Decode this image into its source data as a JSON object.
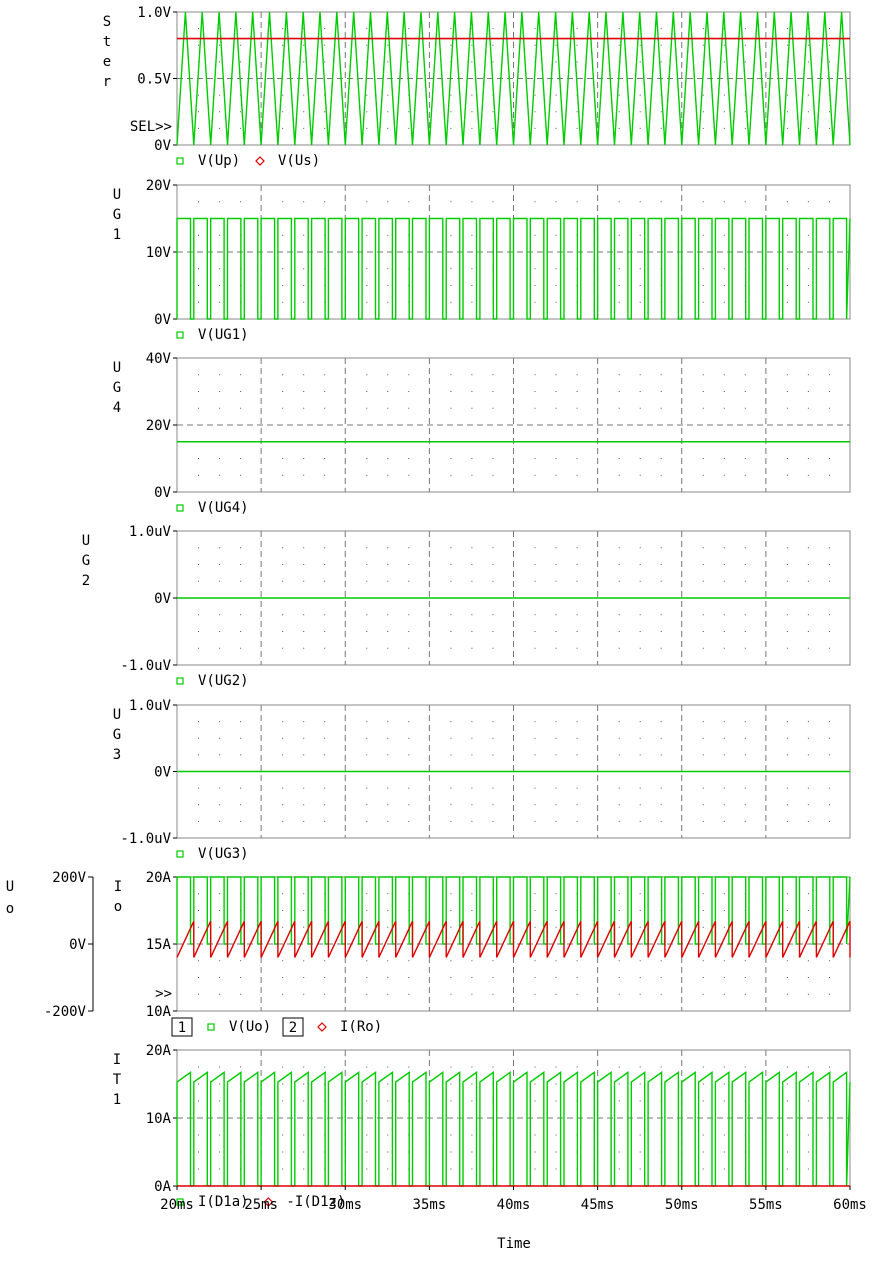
{
  "time_axis": {
    "ticks": [
      "20ms",
      "25ms",
      "30ms",
      "35ms",
      "40ms",
      "45ms",
      "50ms",
      "55ms",
      "60ms"
    ],
    "label": "Time"
  },
  "chart_data": [
    {
      "type": "line",
      "ylabel": [
        "S",
        "t",
        "e",
        "r"
      ],
      "ylim": [
        0,
        1.0
      ],
      "yticks": [
        "0V",
        "0.5V",
        "1.0V"
      ],
      "marker": "SEL>>",
      "xlim_ms": [
        20,
        60
      ],
      "grid": true,
      "legend": [
        {
          "name": "V(Up)",
          "color": "#00cc00",
          "symbol": "square"
        },
        {
          "name": "V(Us)",
          "color": "#dd0000",
          "symbol": "diamond"
        }
      ],
      "series": [
        {
          "name": "V(Up)",
          "waveform": "triangle",
          "min": 0,
          "max": 1.0,
          "period_ms": 1.0,
          "color": "#00cc00"
        },
        {
          "name": "V(Us)",
          "waveform": "constant",
          "value": 0.8,
          "color": "#dd0000"
        }
      ]
    },
    {
      "type": "line",
      "ylabel": [
        "U",
        "G",
        "1"
      ],
      "ylim": [
        0,
        20
      ],
      "yticks": [
        "0V",
        "10V",
        "20V"
      ],
      "xlim_ms": [
        20,
        60
      ],
      "grid": true,
      "legend": [
        {
          "name": "V(UG1)",
          "color": "#00cc00",
          "symbol": "square"
        }
      ],
      "series": [
        {
          "name": "V(UG1)",
          "waveform": "pwm",
          "low": 0,
          "high": 15,
          "period_ms": 1.0,
          "duty": 0.8,
          "color": "#00cc00"
        }
      ]
    },
    {
      "type": "line",
      "ylabel": [
        "U",
        "G",
        "4"
      ],
      "ylim": [
        0,
        40
      ],
      "yticks": [
        "0V",
        "20V",
        "40V"
      ],
      "xlim_ms": [
        20,
        60
      ],
      "grid": true,
      "legend": [
        {
          "name": "V(UG4)",
          "color": "#00cc00",
          "symbol": "square"
        }
      ],
      "series": [
        {
          "name": "V(UG4)",
          "waveform": "constant",
          "value": 15,
          "color": "#00cc00"
        }
      ]
    },
    {
      "type": "line",
      "ylabel": [
        "U",
        "G",
        "2"
      ],
      "ylim": [
        -1.0,
        1.0
      ],
      "yticks": [
        "-1.0uV",
        "0V",
        "1.0uV"
      ],
      "xlim_ms": [
        20,
        60
      ],
      "grid": true,
      "legend": [
        {
          "name": "V(UG2)",
          "color": "#00cc00",
          "symbol": "square"
        }
      ],
      "series": [
        {
          "name": "V(UG2)",
          "waveform": "constant",
          "value": 0,
          "color": "#00cc00"
        }
      ]
    },
    {
      "type": "line",
      "ylabel": [
        "U",
        "G",
        "3"
      ],
      "ylim": [
        -1.0,
        1.0
      ],
      "yticks": [
        "-1.0uV",
        "0V",
        "1.0uV"
      ],
      "xlim_ms": [
        20,
        60
      ],
      "grid": true,
      "legend": [
        {
          "name": "V(UG3)",
          "color": "#00cc00",
          "symbol": "square"
        }
      ],
      "series": [
        {
          "name": "V(UG3)",
          "waveform": "constant",
          "value": 0,
          "color": "#00cc00"
        }
      ]
    },
    {
      "type": "line",
      "ylabel": [
        "I",
        "o"
      ],
      "ylabel_outer": [
        "U",
        "o"
      ],
      "ylim": [
        10,
        20
      ],
      "yticks": [
        "10A",
        "15A",
        "20A"
      ],
      "ylim_outer": [
        -200,
        200
      ],
      "yticks_outer": [
        "-200V",
        "0V",
        "200V"
      ],
      "marker": ">>",
      "xlim_ms": [
        20,
        60
      ],
      "grid": true,
      "legend": [
        {
          "num": "1",
          "name": "V(Uo)",
          "color": "#00cc00",
          "symbol": "square"
        },
        {
          "num": "2",
          "name": "I(Ro)",
          "color": "#dd0000",
          "symbol": "diamond"
        }
      ],
      "series": [
        {
          "name": "V(Uo)",
          "axis": "outer",
          "waveform": "pwm",
          "low": 0,
          "high": 200,
          "period_ms": 1.0,
          "duty": 0.8,
          "color": "#00cc00"
        },
        {
          "name": "I(Ro)",
          "axis": "inner",
          "waveform": "sawtooth",
          "min": 14.0,
          "max": 16.7,
          "period_ms": 1.0,
          "color": "#dd0000"
        }
      ]
    },
    {
      "type": "line",
      "ylabel": [
        "I",
        "T",
        "1"
      ],
      "ylim": [
        0,
        20
      ],
      "yticks": [
        "0A",
        "10A",
        "20A"
      ],
      "xlim_ms": [
        20,
        60
      ],
      "grid": true,
      "legend": [
        {
          "name": "I(D1a)",
          "color": "#00cc00",
          "symbol": "square"
        },
        {
          "name": "-I(D1z)",
          "color": "#dd0000",
          "symbol": "diamond"
        }
      ],
      "series": [
        {
          "name": "I(D1a)",
          "waveform": "pwm_ramp",
          "low": 0,
          "high_start": 15.3,
          "high_end": 16.7,
          "period_ms": 1.0,
          "duty": 0.8,
          "color": "#00cc00"
        },
        {
          "name": "-I(D1z)",
          "waveform": "constant",
          "value": 0,
          "color": "#dd0000"
        }
      ]
    }
  ]
}
